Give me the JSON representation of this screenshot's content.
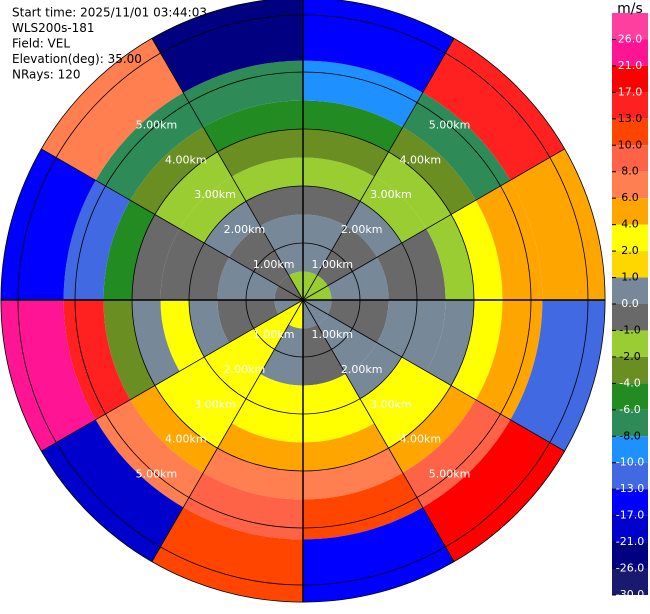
{
  "chart_data": {
    "type": "ppi",
    "header": [
      "Start time: 2025/11/01 03:44:03",
      "WLS200s-181",
      "Field: VEL",
      "Elevation(deg): 35.00",
      "NRays: 120"
    ],
    "range_edges": [
      0,
      0.5,
      1.5,
      2,
      2.5,
      3,
      3.5,
      4.2,
      5.3
    ],
    "azimuth_edges": [
      0,
      30,
      60,
      90,
      120,
      150,
      180,
      210,
      240,
      270,
      300,
      330,
      360
    ],
    "values": [
      [
        -1.5,
        -1.5,
        -1.5,
        0.5,
        0.5,
        0.5,
        3,
        3,
        0.5,
        -0.5,
        -0.5,
        -1.5
      ],
      [
        0.5,
        -0.5,
        0.5,
        -0.5,
        0.5,
        -0.5,
        0.5,
        3,
        -0.5,
        0.5,
        -0.5,
        0.5
      ],
      [
        -0.5,
        0.5,
        -0.5,
        0.5,
        0.5,
        3,
        3,
        3,
        0.5,
        -0.5,
        0.5,
        -0.5
      ],
      [
        -1.5,
        -1.5,
        -0.5,
        0.5,
        3,
        3,
        3,
        3,
        3,
        -0.5,
        -1.5,
        -1.5
      ],
      [
        -3,
        -1.5,
        -1.5,
        0.5,
        3,
        5,
        5,
        3,
        0.5,
        -0.5,
        -1.5,
        -3
      ],
      [
        -5,
        -3,
        3,
        3,
        5,
        7,
        7,
        5,
        -3,
        -5,
        -3,
        -5
      ],
      [
        -9,
        -7,
        5,
        5,
        9,
        11,
        9,
        7,
        15,
        -11,
        -7,
        -7
      ],
      [
        -15,
        15,
        5,
        -11,
        19,
        -15,
        11,
        -19,
        23,
        -15,
        7,
        -23
      ]
    ],
    "range_rings": [
      {
        "value": 1,
        "label": "1.00km"
      },
      {
        "value": 2,
        "label": "2.00km"
      },
      {
        "value": 3,
        "label": "3.00km"
      },
      {
        "value": 4,
        "label": "4.00km"
      },
      {
        "value": 5,
        "label": "5.00km"
      }
    ],
    "colorbar": {
      "title": "m/s",
      "levels": [
        30,
        26,
        21,
        17,
        13,
        10,
        8,
        6,
        4,
        2,
        1,
        0,
        -1,
        -2,
        -4,
        -6,
        -8,
        -10,
        -13,
        -17,
        -21,
        -26,
        -30
      ],
      "colors": [
        "#ff3fa0",
        "#ff1493",
        "#ff0000",
        "#ff2020",
        "#ff4500",
        "#ff6347",
        "#ff7f50",
        "#ffa500",
        "#ffff00",
        "#ffd700",
        "#778899",
        "#696969",
        "#9acd32",
        "#6b8e23",
        "#228b22",
        "#2e8b57",
        "#1e90ff",
        "#4169e1",
        "#0000ff",
        "#0000cd",
        "#000080",
        "#191970"
      ],
      "ticks": [
        {
          "value": 26,
          "label": "26.0"
        },
        {
          "value": 21,
          "label": "21.0"
        },
        {
          "value": 17,
          "label": "17.0"
        },
        {
          "value": 13,
          "label": "13.0"
        },
        {
          "value": 10,
          "label": "10.0"
        },
        {
          "value": 8,
          "label": "8.0"
        },
        {
          "value": 6,
          "label": "6.0"
        },
        {
          "value": 4,
          "label": "4.0"
        },
        {
          "value": 2,
          "label": "2.0"
        },
        {
          "value": 1,
          "label": "1.0"
        },
        {
          "value": 0,
          "label": "0.0"
        },
        {
          "value": -1,
          "label": "-1.0"
        },
        {
          "value": -2,
          "label": "-2.0"
        },
        {
          "value": -4,
          "label": "-4.0"
        },
        {
          "value": -6,
          "label": "-6.0"
        },
        {
          "value": -8,
          "label": "-8.0"
        },
        {
          "value": -10,
          "label": "-10.0"
        },
        {
          "value": -13,
          "label": "-13.0"
        },
        {
          "value": -17,
          "label": "-17.0"
        },
        {
          "value": -21,
          "label": "-21.0"
        },
        {
          "value": -26,
          "label": "-26.0"
        },
        {
          "value": -30,
          "label": "-30.0"
        }
      ]
    }
  }
}
